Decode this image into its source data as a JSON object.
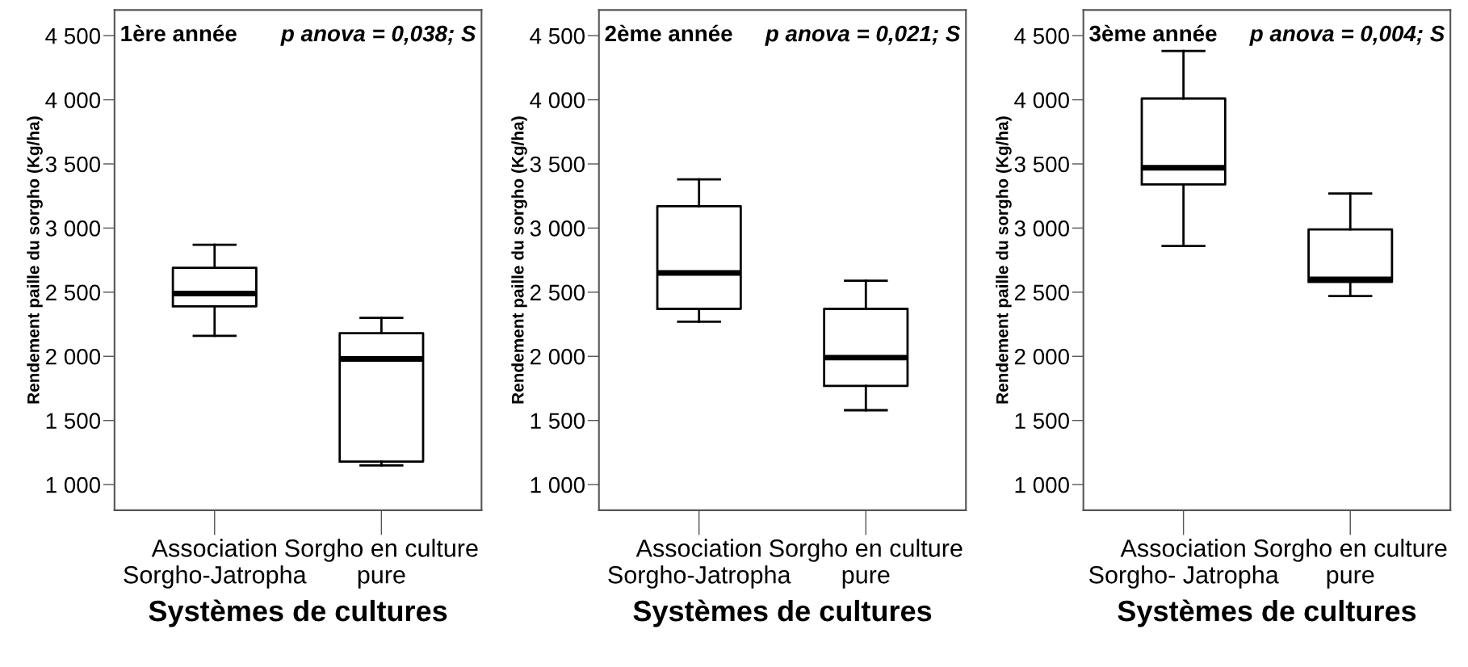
{
  "chart_data": [
    {
      "type": "box",
      "categories": [
        "Association\nSorgho-Jatropha",
        "Sorgho en culture\npure"
      ],
      "xlabel": "Systèmes de cultures",
      "ylabel": "Rendement paille du sorgho (Kg/ha)",
      "annotations": [
        "1ère année",
        "p anova = 0,038; S"
      ],
      "ylim": [
        800,
        4700
      ],
      "yticks": [
        {
          "value": 1000,
          "label": "1 000"
        },
        {
          "value": 1500,
          "label": "1 500"
        },
        {
          "value": 2000,
          "label": "2 000"
        },
        {
          "value": 2500,
          "label": "2 500"
        },
        {
          "value": 3000,
          "label": "3 000"
        },
        {
          "value": 3500,
          "label": "3 500"
        },
        {
          "value": 4000,
          "label": "4 000"
        },
        {
          "value": 4500,
          "label": "4 500"
        }
      ],
      "grid": false,
      "boxes": [
        {
          "low": 2160,
          "q1": 2390,
          "median": 2490,
          "q3": 2690,
          "high": 2870
        },
        {
          "low": 1150,
          "q1": 1180,
          "median": 1980,
          "q3": 2180,
          "high": 2300
        }
      ]
    },
    {
      "type": "box",
      "categories": [
        "Association\nSorgho-Jatropha",
        "Sorgho en culture\npure"
      ],
      "xlabel": "Systèmes de cultures",
      "ylabel": "Rendement paille du sorgho (Kg/ha)",
      "annotations": [
        "2ème année",
        "p anova = 0,021; S"
      ],
      "ylim": [
        800,
        4700
      ],
      "yticks": [
        {
          "value": 1000,
          "label": "1 000"
        },
        {
          "value": 1500,
          "label": "1 500"
        },
        {
          "value": 2000,
          "label": "2 000"
        },
        {
          "value": 2500,
          "label": "2 500"
        },
        {
          "value": 3000,
          "label": "3 000"
        },
        {
          "value": 3500,
          "label": "3 500"
        },
        {
          "value": 4000,
          "label": "4 000"
        },
        {
          "value": 4500,
          "label": "4 500"
        }
      ],
      "grid": false,
      "boxes": [
        {
          "low": 2270,
          "q1": 2370,
          "median": 2650,
          "q3": 3170,
          "high": 3380
        },
        {
          "low": 1580,
          "q1": 1770,
          "median": 1990,
          "q3": 2370,
          "high": 2590
        }
      ]
    },
    {
      "type": "box",
      "categories": [
        "Association\nSorgho- Jatropha",
        "Sorgho en culture\npure"
      ],
      "xlabel": "Systèmes de cultures",
      "ylabel": "Rendement paille du sorgho (Kg/ha)",
      "annotations": [
        "3ème année",
        "p anova = 0,004; S"
      ],
      "ylim": [
        800,
        4700
      ],
      "yticks": [
        {
          "value": 1000,
          "label": "1 000"
        },
        {
          "value": 1500,
          "label": "1 500"
        },
        {
          "value": 2000,
          "label": "2 000"
        },
        {
          "value": 2500,
          "label": "2 500"
        },
        {
          "value": 3000,
          "label": "3 000"
        },
        {
          "value": 3500,
          "label": "3 500"
        },
        {
          "value": 4000,
          "label": "4 000"
        },
        {
          "value": 4500,
          "label": "4 500"
        }
      ],
      "grid": false,
      "boxes": [
        {
          "low": 2860,
          "q1": 3340,
          "median": 3470,
          "q3": 4010,
          "high": 4380
        },
        {
          "low": 2470,
          "q1": 2580,
          "median": 2600,
          "q3": 2990,
          "high": 3270
        }
      ]
    }
  ]
}
